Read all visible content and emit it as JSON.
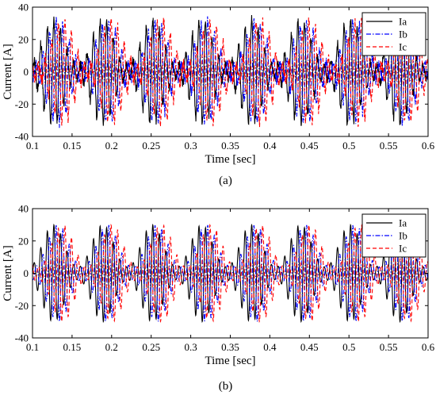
{
  "chart_data": [
    {
      "type": "line",
      "panel_label": "(a)",
      "xlabel": "Time [sec]",
      "ylabel": "Current [A]",
      "xlim": [
        0.1,
        0.6
      ],
      "ylim": [
        -40,
        40
      ],
      "xticks": [
        "0.1",
        "0.15",
        "0.2",
        "0.25",
        "0.3",
        "0.35",
        "0.4",
        "0.45",
        "0.5",
        "0.55",
        "0.6"
      ],
      "yticks": [
        "40",
        "20",
        "0",
        "-20",
        "-40"
      ],
      "legend_position": "top-right",
      "series": [
        {
          "name": "Ia",
          "color": "#000000",
          "dash": "solid"
        },
        {
          "name": "Ib",
          "color": "#0000ff",
          "dash": "dashdot"
        },
        {
          "name": "Ic",
          "color": "#ff0000",
          "dash": "dashed"
        }
      ],
      "signal": {
        "carrier_frequency_hz": 120,
        "envelope_frequency_hz": 16,
        "peak_amplitude": 32,
        "baseline_amplitude": 4,
        "noisy": true
      }
    },
    {
      "type": "line",
      "panel_label": "(b)",
      "xlabel": "Time [sec]",
      "ylabel": "Current [A]",
      "xlim": [
        0.1,
        0.6
      ],
      "ylim": [
        -40,
        40
      ],
      "xticks": [
        "0.1",
        "0.15",
        "0.2",
        "0.25",
        "0.3",
        "0.35",
        "0.4",
        "0.45",
        "0.5",
        "0.55",
        "0.6"
      ],
      "yticks": [
        "40",
        "20",
        "0",
        "-20",
        "-40"
      ],
      "legend_position": "top-right",
      "series": [
        {
          "name": "Ia",
          "color": "#000000",
          "dash": "solid"
        },
        {
          "name": "Ib",
          "color": "#0000ff",
          "dash": "dashdot"
        },
        {
          "name": "Ic",
          "color": "#ff0000",
          "dash": "dashed"
        }
      ],
      "signal": {
        "carrier_frequency_hz": 120,
        "envelope_frequency_hz": 16,
        "peak_amplitude": 30,
        "baseline_amplitude": 4,
        "noisy": false
      }
    }
  ]
}
